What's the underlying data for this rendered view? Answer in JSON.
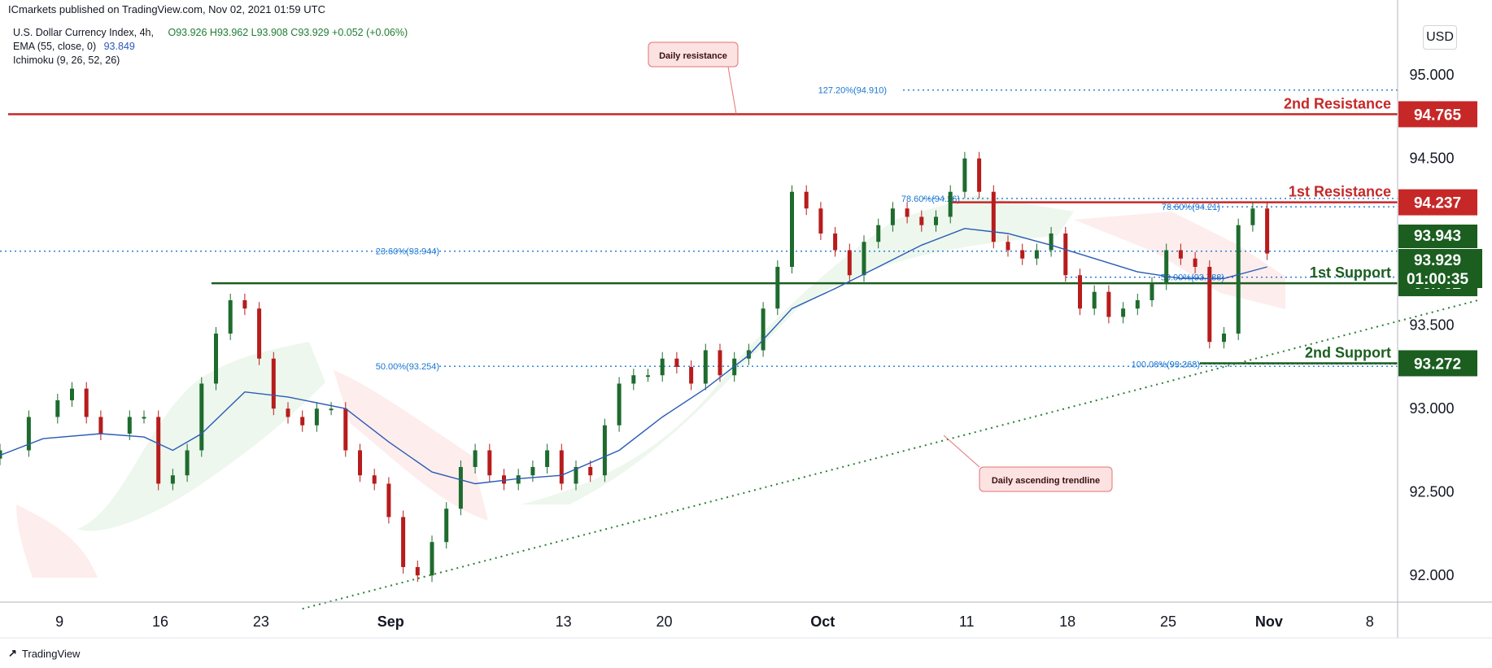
{
  "header": {
    "publisher": "ICmarkets published on TradingView.com, Nov 02, 2021 01:59 UTC"
  },
  "legend": {
    "symbol": "U.S. Dollar Currency Index, 4h,",
    "ohlc": "O93.926 H93.962 L93.908 C93.929 +0.052 (+0.06%)",
    "ema_label": "EMA (55, close, 0)",
    "ema_value": "93.849",
    "ichimoku_label": "Ichimoku (9, 26, 52, 26)"
  },
  "currency": "USD",
  "footer": {
    "brand": "TradingView"
  },
  "colors": {
    "up": "#1e6b2e",
    "down": "#b71c1c",
    "resistance": "#c62828",
    "support": "#1b5e20",
    "ema": "#2a5bb5",
    "fib": "#1976d2"
  },
  "chart_data": {
    "type": "candlestick",
    "symbol": "DXY",
    "timeframe": "4h",
    "ylim": [
      91.84,
      95.45
    ],
    "y_ticks": [
      "92.000",
      "92.500",
      "93.000",
      "93.500",
      "94.000",
      "94.500",
      "95.000"
    ],
    "x_ticks": [
      "9",
      "16",
      "23",
      "Sep",
      "13",
      "20",
      "Oct",
      "11",
      "18",
      "25",
      "Nov",
      "8"
    ],
    "levels": [
      {
        "name": "2nd Resistance",
        "value": "94.765",
        "kind": "resistance"
      },
      {
        "name": "1st Resistance",
        "value": "94.237",
        "kind": "resistance"
      },
      {
        "name": "1st Support",
        "value": "93.752",
        "kind": "support"
      },
      {
        "name": "2nd Support",
        "value": "93.272",
        "kind": "support"
      }
    ],
    "price_tags": [
      {
        "value": "93.943",
        "style": "support"
      },
      {
        "value": "93.929",
        "style": "support"
      },
      {
        "value": "01:00:35",
        "style": "support"
      }
    ],
    "fib_labels": [
      {
        "text": "127.20%(94.910)",
        "price": 94.91
      },
      {
        "text": "23.60%(93.944)",
        "price": 93.944
      },
      {
        "text": "50.00%(93.254)",
        "price": 93.254
      },
      {
        "text": "78.60%(94.26)",
        "price": 94.26
      },
      {
        "text": "78.60%(94.21)",
        "price": 94.21
      },
      {
        "text": "50.00%(93.788)",
        "price": 93.788
      },
      {
        "text": "100.00%(93.268)",
        "price": 93.268
      }
    ],
    "annotations": [
      "Daily resistance",
      "Daily ascending trendline"
    ],
    "trendline": {
      "from": {
        "date": "2021-08-27",
        "price": 91.8
      },
      "to": {
        "date": "2021-11-11",
        "price": 93.65
      }
    },
    "series": [
      {
        "name": "price",
        "points": [
          {
            "date": "2021-08-06",
            "price": 92.75
          },
          {
            "date": "2021-08-08",
            "price": 92.95
          },
          {
            "date": "2021-08-10",
            "price": 93.05
          },
          {
            "date": "2021-08-11",
            "price": 93.12
          },
          {
            "date": "2021-08-12",
            "price": 92.95
          },
          {
            "date": "2021-08-13",
            "price": 92.85
          },
          {
            "date": "2021-08-15",
            "price": 92.95
          },
          {
            "date": "2021-08-16",
            "price": 92.95
          },
          {
            "date": "2021-08-17",
            "price": 92.55
          },
          {
            "date": "2021-08-18",
            "price": 92.6
          },
          {
            "date": "2021-08-19",
            "price": 92.75
          },
          {
            "date": "2021-08-20",
            "price": 93.15
          },
          {
            "date": "2021-08-21",
            "price": 93.45
          },
          {
            "date": "2021-08-22",
            "price": 93.65
          },
          {
            "date": "2021-08-23",
            "price": 93.6
          },
          {
            "date": "2021-08-24",
            "price": 93.3
          },
          {
            "date": "2021-08-25",
            "price": 93.0
          },
          {
            "date": "2021-08-26",
            "price": 92.95
          },
          {
            "date": "2021-08-27",
            "price": 92.9
          },
          {
            "date": "2021-08-28",
            "price": 93.0
          },
          {
            "date": "2021-08-29",
            "price": 93.0
          },
          {
            "date": "2021-08-30",
            "price": 92.75
          },
          {
            "date": "2021-08-31",
            "price": 92.6
          },
          {
            "date": "2021-09-01",
            "price": 92.55
          },
          {
            "date": "2021-09-02",
            "price": 92.35
          },
          {
            "date": "2021-09-03",
            "price": 92.05
          },
          {
            "date": "2021-09-04",
            "price": 92.0
          },
          {
            "date": "2021-09-05",
            "price": 92.2
          },
          {
            "date": "2021-09-06",
            "price": 92.4
          },
          {
            "date": "2021-09-07",
            "price": 92.65
          },
          {
            "date": "2021-09-08",
            "price": 92.75
          },
          {
            "date": "2021-09-09",
            "price": 92.6
          },
          {
            "date": "2021-09-10",
            "price": 92.55
          },
          {
            "date": "2021-09-11",
            "price": 92.6
          },
          {
            "date": "2021-09-12",
            "price": 92.65
          },
          {
            "date": "2021-09-13",
            "price": 92.75
          },
          {
            "date": "2021-09-14",
            "price": 92.55
          },
          {
            "date": "2021-09-15",
            "price": 92.65
          },
          {
            "date": "2021-09-16",
            "price": 92.6
          },
          {
            "date": "2021-09-17",
            "price": 92.9
          },
          {
            "date": "2021-09-18",
            "price": 93.15
          },
          {
            "date": "2021-09-19",
            "price": 93.2
          },
          {
            "date": "2021-09-20",
            "price": 93.2
          },
          {
            "date": "2021-09-21",
            "price": 93.3
          },
          {
            "date": "2021-09-22",
            "price": 93.25
          },
          {
            "date": "2021-09-23",
            "price": 93.15
          },
          {
            "date": "2021-09-24",
            "price": 93.35
          },
          {
            "date": "2021-09-25",
            "price": 93.2
          },
          {
            "date": "2021-09-26",
            "price": 93.3
          },
          {
            "date": "2021-09-27",
            "price": 93.35
          },
          {
            "date": "2021-09-28",
            "price": 93.6
          },
          {
            "date": "2021-09-29",
            "price": 93.85
          },
          {
            "date": "2021-09-30",
            "price": 94.3
          },
          {
            "date": "2021-10-01",
            "price": 94.2
          },
          {
            "date": "2021-10-02",
            "price": 94.05
          },
          {
            "date": "2021-10-03",
            "price": 93.95
          },
          {
            "date": "2021-10-04",
            "price": 93.8
          },
          {
            "date": "2021-10-05",
            "price": 94.0
          },
          {
            "date": "2021-10-06",
            "price": 94.1
          },
          {
            "date": "2021-10-07",
            "price": 94.2
          },
          {
            "date": "2021-10-08",
            "price": 94.15
          },
          {
            "date": "2021-10-09",
            "price": 94.1
          },
          {
            "date": "2021-10-10",
            "price": 94.15
          },
          {
            "date": "2021-10-11",
            "price": 94.3
          },
          {
            "date": "2021-10-12",
            "price": 94.5
          },
          {
            "date": "2021-10-13",
            "price": 94.3
          },
          {
            "date": "2021-10-14",
            "price": 94.0
          },
          {
            "date": "2021-10-15",
            "price": 93.95
          },
          {
            "date": "2021-10-16",
            "price": 93.9
          },
          {
            "date": "2021-10-17",
            "price": 93.95
          },
          {
            "date": "2021-10-18",
            "price": 94.05
          },
          {
            "date": "2021-10-19",
            "price": 93.8
          },
          {
            "date": "2021-10-20",
            "price": 93.6
          },
          {
            "date": "2021-10-21",
            "price": 93.7
          },
          {
            "date": "2021-10-22",
            "price": 93.55
          },
          {
            "date": "2021-10-23",
            "price": 93.6
          },
          {
            "date": "2021-10-24",
            "price": 93.65
          },
          {
            "date": "2021-10-25",
            "price": 93.75
          },
          {
            "date": "2021-10-26",
            "price": 93.95
          },
          {
            "date": "2021-10-27",
            "price": 93.9
          },
          {
            "date": "2021-10-28",
            "price": 93.85
          },
          {
            "date": "2021-10-29",
            "price": 93.4
          },
          {
            "date": "2021-10-30",
            "price": 93.45
          },
          {
            "date": "2021-10-31",
            "price": 94.1
          },
          {
            "date": "2021-11-01",
            "price": 94.2
          },
          {
            "date": "2021-11-02",
            "price": 93.93
          }
        ]
      },
      {
        "name": "EMA (55, close, 0)",
        "points": [
          {
            "date": "2021-08-06",
            "price": 92.72
          },
          {
            "date": "2021-08-09",
            "price": 92.82
          },
          {
            "date": "2021-08-13",
            "price": 92.85
          },
          {
            "date": "2021-08-16",
            "price": 92.83
          },
          {
            "date": "2021-08-18",
            "price": 92.75
          },
          {
            "date": "2021-08-20",
            "price": 92.85
          },
          {
            "date": "2021-08-23",
            "price": 93.1
          },
          {
            "date": "2021-08-26",
            "price": 93.07
          },
          {
            "date": "2021-08-30",
            "price": 93.0
          },
          {
            "date": "2021-09-02",
            "price": 92.8
          },
          {
            "date": "2021-09-05",
            "price": 92.62
          },
          {
            "date": "2021-09-08",
            "price": 92.55
          },
          {
            "date": "2021-09-11",
            "price": 92.58
          },
          {
            "date": "2021-09-14",
            "price": 92.6
          },
          {
            "date": "2021-09-18",
            "price": 92.75
          },
          {
            "date": "2021-09-21",
            "price": 92.95
          },
          {
            "date": "2021-09-24",
            "price": 93.12
          },
          {
            "date": "2021-09-27",
            "price": 93.32
          },
          {
            "date": "2021-09-30",
            "price": 93.6
          },
          {
            "date": "2021-10-03",
            "price": 93.72
          },
          {
            "date": "2021-10-06",
            "price": 93.85
          },
          {
            "date": "2021-10-09",
            "price": 93.98
          },
          {
            "date": "2021-10-12",
            "price": 94.08
          },
          {
            "date": "2021-10-15",
            "price": 94.05
          },
          {
            "date": "2021-10-18",
            "price": 93.98
          },
          {
            "date": "2021-10-21",
            "price": 93.9
          },
          {
            "date": "2021-10-24",
            "price": 93.82
          },
          {
            "date": "2021-10-27",
            "price": 93.78
          },
          {
            "date": "2021-10-30",
            "price": 93.78
          },
          {
            "date": "2021-11-02",
            "price": 93.85
          }
        ]
      }
    ]
  }
}
